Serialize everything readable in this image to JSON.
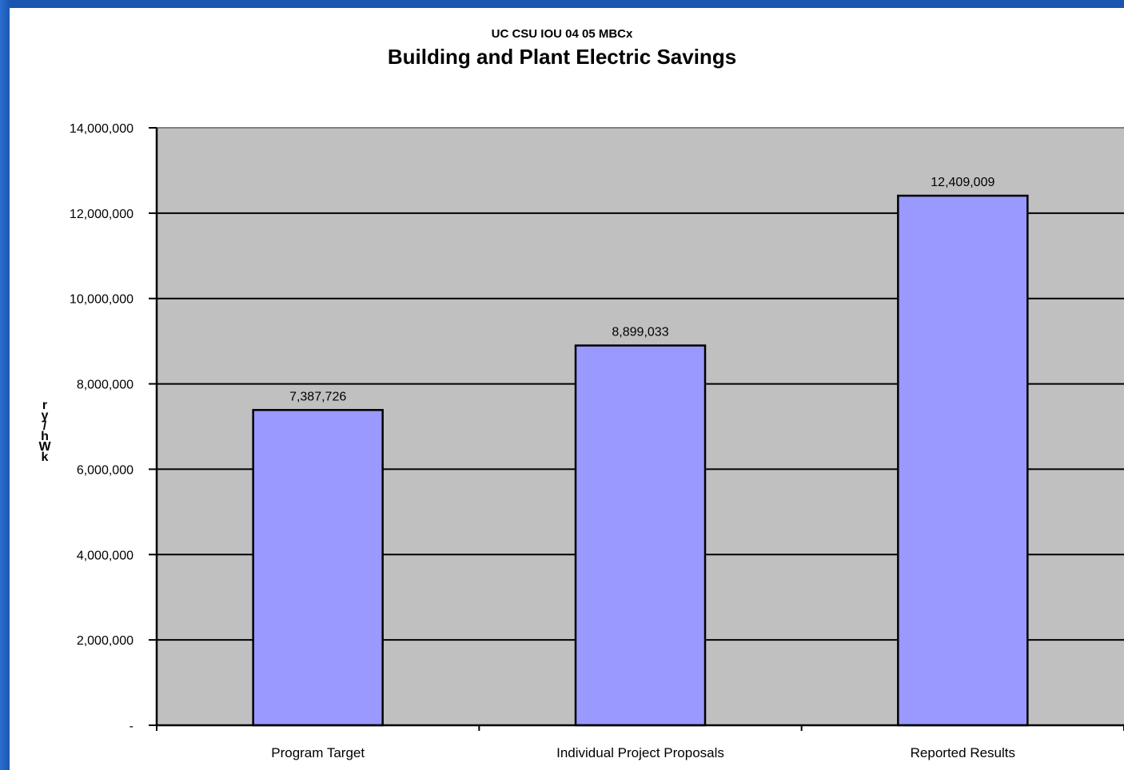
{
  "chart_data": {
    "type": "bar",
    "title": "Building and Plant Electric Savings",
    "subtitle": "UC CSU IOU 04 05  MBCx",
    "ylabel": "kWh/yr",
    "ylim": [
      0,
      14000000
    ],
    "yticks": [
      {
        "value": 0,
        "label": "-"
      },
      {
        "value": 2000000,
        "label": "2,000,000"
      },
      {
        "value": 4000000,
        "label": "4,000,000"
      },
      {
        "value": 6000000,
        "label": "6,000,000"
      },
      {
        "value": 8000000,
        "label": "8,000,000"
      },
      {
        "value": 10000000,
        "label": "10,000,000"
      },
      {
        "value": 12000000,
        "label": "12,000,000"
      },
      {
        "value": 14000000,
        "label": "14,000,000"
      }
    ],
    "categories": [
      "Program Target",
      "Individual Project Proposals",
      "Reported Results"
    ],
    "values": [
      7387726,
      8899033,
      12409009
    ],
    "value_labels": [
      "7,387,726",
      "8,899,033",
      "12,409,009"
    ],
    "grid": true,
    "bar_color": "#9999ff",
    "plot_background": "#c0c0c0"
  }
}
